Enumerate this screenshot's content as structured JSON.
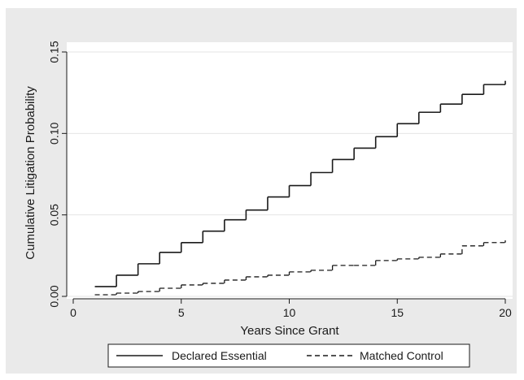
{
  "chart_data": {
    "type": "line",
    "step": true,
    "xlabel": "Years Since Grant",
    "ylabel": "Cumulative Litigation Probability",
    "xlim": [
      0,
      20
    ],
    "ylim": [
      0,
      0.15
    ],
    "x_ticks": [
      0,
      5,
      10,
      15,
      20
    ],
    "x_tick_labels": [
      "0",
      "5",
      "10",
      "15",
      "20"
    ],
    "y_ticks": [
      0,
      0.05,
      0.1,
      0.15
    ],
    "y_tick_labels": [
      "0.00",
      "0.05",
      "0.10",
      "0.15"
    ],
    "grid": true,
    "legend_position": "bottom",
    "series": [
      {
        "name": "Declared Essential",
        "style": "solid",
        "color": "#1a1a1a",
        "x": [
          1,
          2,
          3,
          4,
          5,
          6,
          7,
          8,
          9,
          10,
          11,
          12,
          13,
          14,
          15,
          16,
          17,
          18,
          19,
          20
        ],
        "values": [
          0.006,
          0.013,
          0.02,
          0.027,
          0.033,
          0.04,
          0.047,
          0.053,
          0.061,
          0.068,
          0.076,
          0.084,
          0.091,
          0.098,
          0.106,
          0.113,
          0.118,
          0.124,
          0.13,
          0.132
        ]
      },
      {
        "name": "Matched Control",
        "style": "dashed",
        "color": "#1a1a1a",
        "x": [
          1,
          2,
          3,
          4,
          5,
          6,
          7,
          8,
          9,
          10,
          11,
          12,
          13,
          14,
          15,
          16,
          17,
          18,
          19,
          20
        ],
        "values": [
          0.001,
          0.002,
          0.003,
          0.005,
          0.007,
          0.008,
          0.01,
          0.012,
          0.013,
          0.015,
          0.016,
          0.019,
          0.019,
          0.022,
          0.023,
          0.024,
          0.026,
          0.031,
          0.033,
          0.034
        ]
      }
    ]
  },
  "colors": {
    "outer_background": "#eaeaea",
    "plot_background": "#ffffff",
    "grid": "#e4e4e4",
    "ink": "#1a1a1a"
  }
}
